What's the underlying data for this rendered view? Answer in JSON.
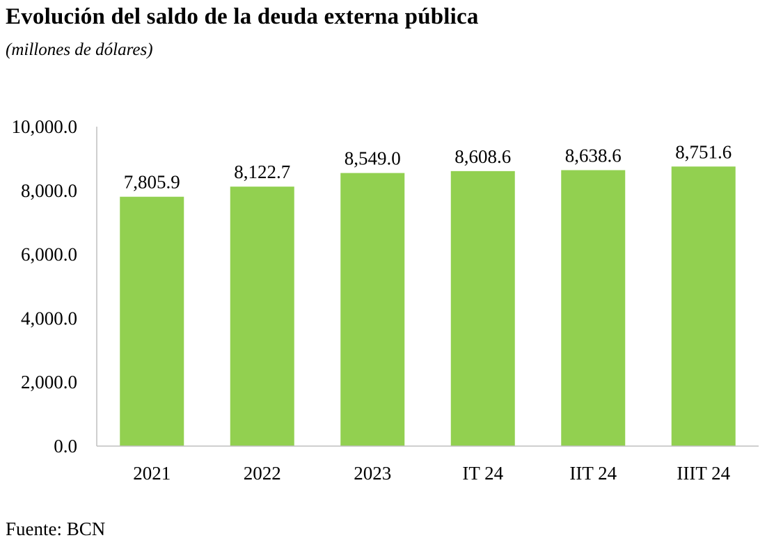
{
  "title": "Evolución del saldo de la deuda externa pública",
  "subtitle": "(millones de dólares)",
  "source": "Fuente: BCN",
  "colors": {
    "bar": "#92d050",
    "axis": "#bfbfbf"
  },
  "chart_data": {
    "type": "bar",
    "categories": [
      "2021",
      "2022",
      "2023",
      "IT 24",
      "IIT 24",
      "IIIT 24"
    ],
    "values": [
      7805.9,
      8122.7,
      8549.0,
      8608.6,
      8638.6,
      8751.6
    ],
    "value_labels": [
      "7,805.9",
      "8,122.7",
      "8,549.0",
      "8,608.6",
      "8,638.6",
      "8,751.6"
    ],
    "yticks": [
      0,
      2000,
      4000,
      6000,
      8000,
      10000
    ],
    "ytick_labels": [
      "0.0",
      "2,000.0",
      "4,000.0",
      "6,000.0",
      "8,000.0",
      "10,000.0"
    ],
    "ylim": [
      0,
      10000
    ],
    "grid": false,
    "legend": "none",
    "xlabel": "",
    "ylabel": ""
  }
}
